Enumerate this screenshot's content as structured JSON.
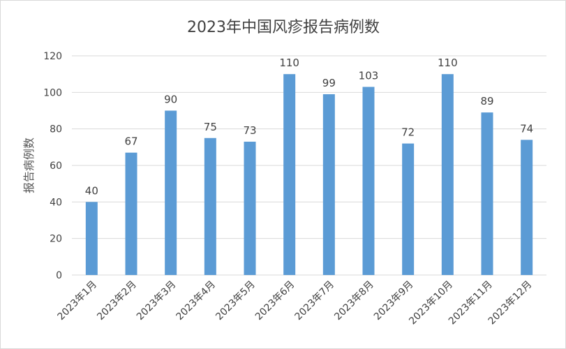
{
  "chart_data": {
    "type": "bar",
    "title": "2023年中国风疹报告病例数",
    "xlabel": "",
    "ylabel": "报告病例数",
    "categories": [
      "2023年1月",
      "2023年2月",
      "2023年3月",
      "2023年4月",
      "2023年5月",
      "2023年6月",
      "2023年7月",
      "2023年8月",
      "2023年9月",
      "2023年10月",
      "2023年11月",
      "2023年12月"
    ],
    "values": [
      40,
      67,
      90,
      75,
      73,
      110,
      99,
      103,
      72,
      110,
      89,
      74
    ],
    "ylim": [
      0,
      120
    ],
    "yticks": [
      0,
      20,
      40,
      60,
      80,
      100,
      120
    ],
    "grid": true,
    "legend": "none",
    "data_labels": true,
    "colors": {
      "bar": "#5b9bd5",
      "grid": "#d9d9d9",
      "text": "#404040"
    }
  }
}
